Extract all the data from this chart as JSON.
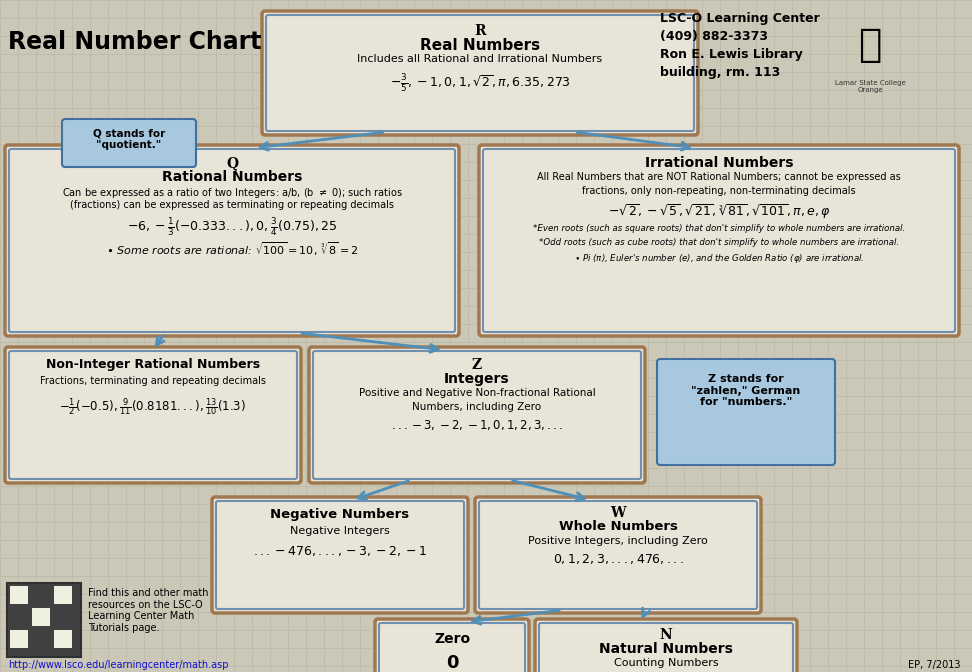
{
  "bg_color": "#ccc8b8",
  "title": "Real Number Chart",
  "header_info": [
    "LSC-O Learning Center",
    "(409) 882-3373",
    "Ron E. Lewis Library",
    "building, rm. 113"
  ],
  "arrow_color": "#5090b8",
  "footer": {
    "url": "http://www.lsco.edu/learningcenter/math.asp",
    "credit": "EP, 7/2013",
    "find_text": "Find this and other math\nresources on the LSC-O\nLearning Center Math\nTutorials page."
  }
}
